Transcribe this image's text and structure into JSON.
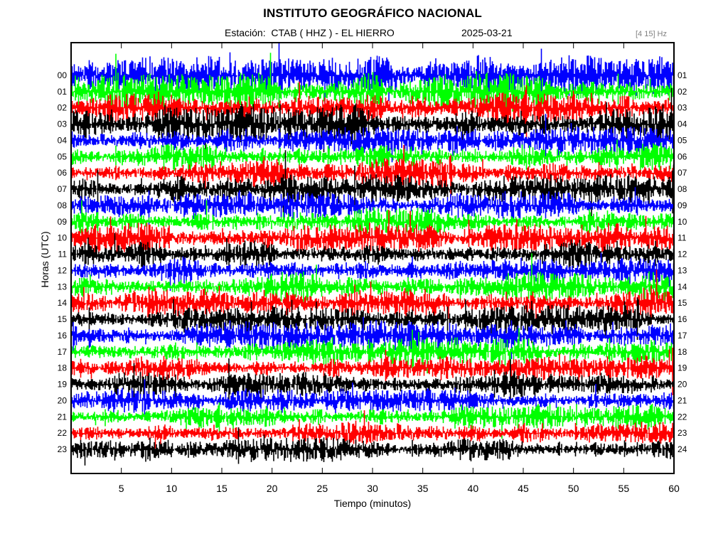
{
  "header": {
    "title": "INSTITUTO GEOGRÁFICO NACIONAL",
    "station": "Estación:  CTAB ( HHZ ) - EL HIERRO",
    "date": "2025-03-21",
    "band": "[4 15]",
    "band_unit": "Hz"
  },
  "chart_data": {
    "type": "line",
    "title": "INSTITUTO GEOGRÁFICO NACIONAL",
    "xlabel": "Tiempo (minutos)",
    "ylabel": "Horas (UTC)",
    "xlim": [
      0,
      60
    ],
    "x_ticks": [
      5,
      10,
      15,
      20,
      25,
      30,
      35,
      40,
      45,
      50,
      55,
      60
    ],
    "y_ticks_left": [
      "00",
      "01",
      "02",
      "03",
      "04",
      "05",
      "06",
      "07",
      "08",
      "09",
      "10",
      "11",
      "12",
      "13",
      "14",
      "15",
      "16",
      "17",
      "18",
      "19",
      "20",
      "21",
      "22",
      "23"
    ],
    "y_ticks_right": [
      "01",
      "02",
      "03",
      "04",
      "05",
      "06",
      "07",
      "08",
      "09",
      "10",
      "11",
      "12",
      "13",
      "14",
      "15",
      "16",
      "17",
      "18",
      "19",
      "20",
      "21",
      "22",
      "23",
      "24"
    ],
    "trace_colors": [
      "#0000ff",
      "#00ff00",
      "#ff0000",
      "#000000"
    ],
    "grid": false,
    "legend": "none"
  }
}
